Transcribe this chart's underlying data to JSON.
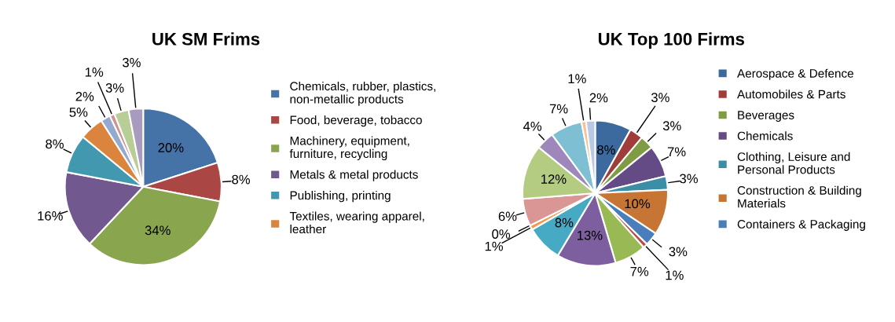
{
  "chart_data": [
    {
      "type": "pie",
      "title": "UK SM Frims",
      "categories": [
        "Chemicals, rubber, plastics,\nnon-metallic products",
        "Food, beverage, tobacco",
        "Machinery, equipment,\nfurniture, recycling",
        "Metals & metal products",
        "Publishing, printing",
        "Textiles, wearing apparel,\nleather",
        null,
        null,
        null,
        null
      ],
      "values": [
        20,
        8,
        34,
        16,
        8,
        5,
        2,
        1,
        3,
        3
      ],
      "value_labels": [
        "20%",
        "8%",
        "34%",
        "16%",
        "8%",
        "5%",
        "2%",
        "1%",
        "3%",
        "3%"
      ],
      "colors": [
        "#4572a7",
        "#aa4643",
        "#89a54e",
        "#71588f",
        "#4198af",
        "#db843d",
        "#93a9cf",
        "#d19392",
        "#b9cd96",
        "#a99bbd"
      ],
      "legend": "right"
    },
    {
      "type": "pie",
      "title": "UK Top 100 Firms",
      "categories": [
        "Aerospace & Defence",
        "Automobiles & Parts",
        "Beverages",
        "Chemicals",
        "Clothing, Leisure and\nPersonal Products",
        "Construction & Building\nMaterials",
        "Containers & Packaging",
        null,
        null,
        null,
        null,
        null,
        null,
        null,
        null,
        null,
        null,
        null,
        null
      ],
      "values": [
        8,
        3,
        3,
        7,
        3,
        10,
        3,
        1,
        7,
        13,
        8,
        1,
        0,
        6,
        12,
        4,
        7,
        1,
        2
      ],
      "value_labels": [
        "8%",
        "3%",
        "3%",
        "7%",
        "3%",
        "10%",
        "3%",
        "1%",
        "7%",
        "13%",
        "8%",
        "1%",
        "0%",
        "6%",
        "12%",
        "4%",
        "7%",
        "1%",
        "2%"
      ],
      "colors": [
        "#3d6a9e",
        "#a03c3a",
        "#7f9c45",
        "#654b85",
        "#3b8ea5",
        "#c77535",
        "#4a7ebb",
        "#be4b48",
        "#98b954",
        "#7d5fa0",
        "#46aac5",
        "#f79646",
        "#2c4d75",
        "#d99694",
        "#b3cc82",
        "#9e88bb",
        "#7fbfd4",
        "#fac090",
        "#b9c9e3"
      ],
      "legend": "right"
    }
  ]
}
